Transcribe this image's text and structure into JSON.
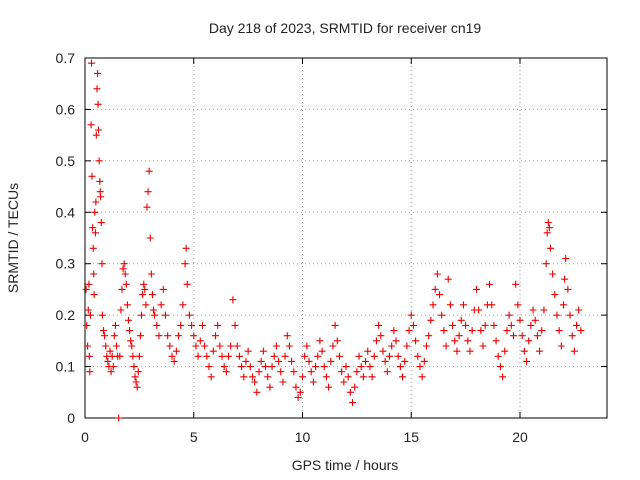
{
  "chart_data": {
    "type": "scatter",
    "title": "Day 218 of 2023, SRMTID for receiver cn19",
    "xlabel": "GPS time / hours",
    "ylabel": "SRMTID / TECUs",
    "xlim": [
      0,
      24
    ],
    "ylim": [
      0,
      0.7
    ],
    "xticks": [
      0,
      5,
      10,
      15,
      20
    ],
    "yticks": [
      0,
      0.1,
      0.2,
      0.3,
      0.4,
      0.5,
      0.6,
      0.7
    ],
    "xtick_labels": [
      "0",
      "5",
      "10",
      "15",
      "20"
    ],
    "ytick_labels": [
      "0",
      "0.1",
      "0.2",
      "0.3",
      "0.4",
      "0.5",
      "0.6",
      "0.7"
    ],
    "grid": true,
    "marker": "+",
    "color": "#ee0000",
    "series": [
      {
        "name": "SRMTID",
        "points": [
          [
            0.05,
            0.25
          ],
          [
            0.08,
            0.18
          ],
          [
            0.12,
            0.14
          ],
          [
            0.15,
            0.21
          ],
          [
            0.18,
            0.26
          ],
          [
            0.2,
            0.12
          ],
          [
            0.22,
            0.09
          ],
          [
            0.25,
            0.2
          ],
          [
            0.28,
            0.57
          ],
          [
            0.3,
            0.69
          ],
          [
            0.32,
            0.47
          ],
          [
            0.35,
            0.37
          ],
          [
            0.38,
            0.33
          ],
          [
            0.4,
            0.28
          ],
          [
            0.42,
            0.24
          ],
          [
            0.45,
            0.4
          ],
          [
            0.48,
            0.36
          ],
          [
            0.5,
            0.42
          ],
          [
            0.52,
            0.55
          ],
          [
            0.55,
            0.64
          ],
          [
            0.58,
            0.67
          ],
          [
            0.6,
            0.61
          ],
          [
            0.62,
            0.56
          ],
          [
            0.65,
            0.5
          ],
          [
            0.68,
            0.46
          ],
          [
            0.7,
            0.44
          ],
          [
            0.72,
            0.43
          ],
          [
            0.75,
            0.38
          ],
          [
            0.78,
            0.3
          ],
          [
            0.8,
            0.2
          ],
          [
            0.85,
            0.17
          ],
          [
            0.9,
            0.16
          ],
          [
            0.95,
            0.14
          ],
          [
            1.0,
            0.12
          ],
          [
            1.05,
            0.11
          ],
          [
            1.1,
            0.1
          ],
          [
            1.15,
            0.13
          ],
          [
            1.2,
            0.09
          ],
          [
            1.25,
            0.12
          ],
          [
            1.3,
            0.1
          ],
          [
            1.35,
            0.16
          ],
          [
            1.4,
            0.18
          ],
          [
            1.45,
            0.14
          ],
          [
            1.5,
            0.12
          ],
          [
            1.55,
            0.0
          ],
          [
            1.6,
            0.12
          ],
          [
            1.65,
            0.21
          ],
          [
            1.7,
            0.25
          ],
          [
            1.75,
            0.29
          ],
          [
            1.8,
            0.3
          ],
          [
            1.85,
            0.28
          ],
          [
            1.9,
            0.26
          ],
          [
            1.95,
            0.22
          ],
          [
            2.0,
            0.19
          ],
          [
            2.05,
            0.17
          ],
          [
            2.1,
            0.15
          ],
          [
            2.15,
            0.14
          ],
          [
            2.2,
            0.12
          ],
          [
            2.25,
            0.1
          ],
          [
            2.3,
            0.08
          ],
          [
            2.35,
            0.07
          ],
          [
            2.4,
            0.06
          ],
          [
            2.45,
            0.09
          ],
          [
            2.5,
            0.12
          ],
          [
            2.55,
            0.16
          ],
          [
            2.6,
            0.2
          ],
          [
            2.65,
            0.24
          ],
          [
            2.7,
            0.26
          ],
          [
            2.75,
            0.25
          ],
          [
            2.8,
            0.22
          ],
          [
            2.85,
            0.41
          ],
          [
            2.9,
            0.44
          ],
          [
            2.95,
            0.48
          ],
          [
            3.0,
            0.35
          ],
          [
            3.05,
            0.28
          ],
          [
            3.1,
            0.24
          ],
          [
            3.15,
            0.21
          ],
          [
            3.2,
            0.2
          ],
          [
            3.3,
            0.18
          ],
          [
            3.4,
            0.16
          ],
          [
            3.5,
            0.22
          ],
          [
            3.6,
            0.25
          ],
          [
            3.7,
            0.2
          ],
          [
            3.8,
            0.16
          ],
          [
            3.9,
            0.14
          ],
          [
            4.0,
            0.12
          ],
          [
            4.1,
            0.11
          ],
          [
            4.2,
            0.13
          ],
          [
            4.3,
            0.16
          ],
          [
            4.4,
            0.18
          ],
          [
            4.5,
            0.22
          ],
          [
            4.6,
            0.3
          ],
          [
            4.65,
            0.33
          ],
          [
            4.7,
            0.26
          ],
          [
            4.8,
            0.2
          ],
          [
            4.9,
            0.18
          ],
          [
            5.0,
            0.16
          ],
          [
            5.1,
            0.14
          ],
          [
            5.2,
            0.12
          ],
          [
            5.3,
            0.15
          ],
          [
            5.4,
            0.18
          ],
          [
            5.5,
            0.14
          ],
          [
            5.6,
            0.12
          ],
          [
            5.7,
            0.1
          ],
          [
            5.8,
            0.08
          ],
          [
            5.9,
            0.13
          ],
          [
            6.0,
            0.16
          ],
          [
            6.1,
            0.18
          ],
          [
            6.2,
            0.14
          ],
          [
            6.3,
            0.12
          ],
          [
            6.4,
            0.1
          ],
          [
            6.5,
            0.09
          ],
          [
            6.6,
            0.12
          ],
          [
            6.7,
            0.14
          ],
          [
            6.8,
            0.23
          ],
          [
            6.9,
            0.18
          ],
          [
            7.0,
            0.14
          ],
          [
            7.1,
            0.12
          ],
          [
            7.2,
            0.1
          ],
          [
            7.3,
            0.08
          ],
          [
            7.4,
            0.11
          ],
          [
            7.5,
            0.13
          ],
          [
            7.6,
            0.1
          ],
          [
            7.7,
            0.08
          ],
          [
            7.8,
            0.07
          ],
          [
            7.9,
            0.05
          ],
          [
            8.0,
            0.09
          ],
          [
            8.1,
            0.11
          ],
          [
            8.2,
            0.13
          ],
          [
            8.3,
            0.1
          ],
          [
            8.4,
            0.08
          ],
          [
            8.5,
            0.06
          ],
          [
            8.6,
            0.1
          ],
          [
            8.7,
            0.12
          ],
          [
            8.8,
            0.14
          ],
          [
            8.9,
            0.11
          ],
          [
            9.0,
            0.09
          ],
          [
            9.1,
            0.07
          ],
          [
            9.2,
            0.12
          ],
          [
            9.3,
            0.16
          ],
          [
            9.4,
            0.14
          ],
          [
            9.5,
            0.11
          ],
          [
            9.6,
            0.09
          ],
          [
            9.7,
            0.06
          ],
          [
            9.8,
            0.04
          ],
          [
            9.9,
            0.05
          ],
          [
            10.0,
            0.08
          ],
          [
            10.1,
            0.12
          ],
          [
            10.2,
            0.14
          ],
          [
            10.3,
            0.11
          ],
          [
            10.4,
            0.09
          ],
          [
            10.5,
            0.07
          ],
          [
            10.6,
            0.1
          ],
          [
            10.7,
            0.12
          ],
          [
            10.8,
            0.15
          ],
          [
            10.9,
            0.13
          ],
          [
            11.0,
            0.1
          ],
          [
            11.1,
            0.08
          ],
          [
            11.2,
            0.06
          ],
          [
            11.3,
            0.11
          ],
          [
            11.4,
            0.14
          ],
          [
            11.5,
            0.18
          ],
          [
            11.6,
            0.15
          ],
          [
            11.7,
            0.12
          ],
          [
            11.8,
            0.09
          ],
          [
            11.9,
            0.07
          ],
          [
            12.0,
            0.1
          ],
          [
            12.1,
            0.08
          ],
          [
            12.2,
            0.05
          ],
          [
            12.3,
            0.03
          ],
          [
            12.4,
            0.06
          ],
          [
            12.5,
            0.09
          ],
          [
            12.6,
            0.12
          ],
          [
            12.7,
            0.1
          ],
          [
            12.8,
            0.08
          ],
          [
            12.9,
            0.11
          ],
          [
            13.0,
            0.13
          ],
          [
            13.1,
            0.1
          ],
          [
            13.2,
            0.08
          ],
          [
            13.3,
            0.12
          ],
          [
            13.4,
            0.15
          ],
          [
            13.5,
            0.18
          ],
          [
            13.6,
            0.16
          ],
          [
            13.7,
            0.13
          ],
          [
            13.8,
            0.11
          ],
          [
            13.9,
            0.09
          ],
          [
            14.0,
            0.12
          ],
          [
            14.1,
            0.14
          ],
          [
            14.2,
            0.17
          ],
          [
            14.3,
            0.15
          ],
          [
            14.4,
            0.12
          ],
          [
            14.5,
            0.1
          ],
          [
            14.6,
            0.08
          ],
          [
            14.7,
            0.11
          ],
          [
            14.8,
            0.14
          ],
          [
            14.9,
            0.17
          ],
          [
            15.0,
            0.2
          ],
          [
            15.1,
            0.18
          ],
          [
            15.2,
            0.15
          ],
          [
            15.3,
            0.12
          ],
          [
            15.4,
            0.1
          ],
          [
            15.5,
            0.08
          ],
          [
            15.6,
            0.11
          ],
          [
            15.7,
            0.14
          ],
          [
            15.8,
            0.16
          ],
          [
            15.9,
            0.19
          ],
          [
            16.0,
            0.22
          ],
          [
            16.1,
            0.25
          ],
          [
            16.2,
            0.28
          ],
          [
            16.3,
            0.24
          ],
          [
            16.4,
            0.2
          ],
          [
            16.5,
            0.17
          ],
          [
            16.6,
            0.14
          ],
          [
            16.7,
            0.27
          ],
          [
            16.8,
            0.22
          ],
          [
            16.9,
            0.18
          ],
          [
            17.0,
            0.15
          ],
          [
            17.1,
            0.13
          ],
          [
            17.2,
            0.16
          ],
          [
            17.3,
            0.19
          ],
          [
            17.4,
            0.22
          ],
          [
            17.5,
            0.18
          ],
          [
            17.6,
            0.15
          ],
          [
            17.7,
            0.13
          ],
          [
            17.8,
            0.17
          ],
          [
            17.9,
            0.21
          ],
          [
            18.0,
            0.25
          ],
          [
            18.1,
            0.21
          ],
          [
            18.2,
            0.17
          ],
          [
            18.3,
            0.14
          ],
          [
            18.4,
            0.18
          ],
          [
            18.5,
            0.22
          ],
          [
            18.6,
            0.26
          ],
          [
            18.7,
            0.22
          ],
          [
            18.8,
            0.18
          ],
          [
            18.9,
            0.15
          ],
          [
            19.0,
            0.12
          ],
          [
            19.1,
            0.1
          ],
          [
            19.2,
            0.08
          ],
          [
            19.3,
            0.13
          ],
          [
            19.4,
            0.17
          ],
          [
            19.5,
            0.2
          ],
          [
            19.6,
            0.18
          ],
          [
            19.7,
            0.16
          ],
          [
            19.8,
            0.26
          ],
          [
            19.9,
            0.22
          ],
          [
            20.0,
            0.19
          ],
          [
            20.1,
            0.16
          ],
          [
            20.2,
            0.13
          ],
          [
            20.3,
            0.11
          ],
          [
            20.4,
            0.15
          ],
          [
            20.5,
            0.18
          ],
          [
            20.6,
            0.21
          ],
          [
            20.7,
            0.19
          ],
          [
            20.8,
            0.16
          ],
          [
            20.9,
            0.13
          ],
          [
            21.0,
            0.17
          ],
          [
            21.1,
            0.21
          ],
          [
            21.2,
            0.3
          ],
          [
            21.25,
            0.36
          ],
          [
            21.3,
            0.38
          ],
          [
            21.35,
            0.37
          ],
          [
            21.4,
            0.33
          ],
          [
            21.5,
            0.28
          ],
          [
            21.6,
            0.24
          ],
          [
            21.7,
            0.2
          ],
          [
            21.8,
            0.17
          ],
          [
            21.9,
            0.14
          ],
          [
            22.0,
            0.22
          ],
          [
            22.05,
            0.27
          ],
          [
            22.1,
            0.31
          ],
          [
            22.2,
            0.25
          ],
          [
            22.3,
            0.2
          ],
          [
            22.4,
            0.16
          ],
          [
            22.5,
            0.13
          ],
          [
            22.6,
            0.18
          ],
          [
            22.7,
            0.21
          ],
          [
            22.8,
            0.17
          ]
        ]
      }
    ]
  }
}
